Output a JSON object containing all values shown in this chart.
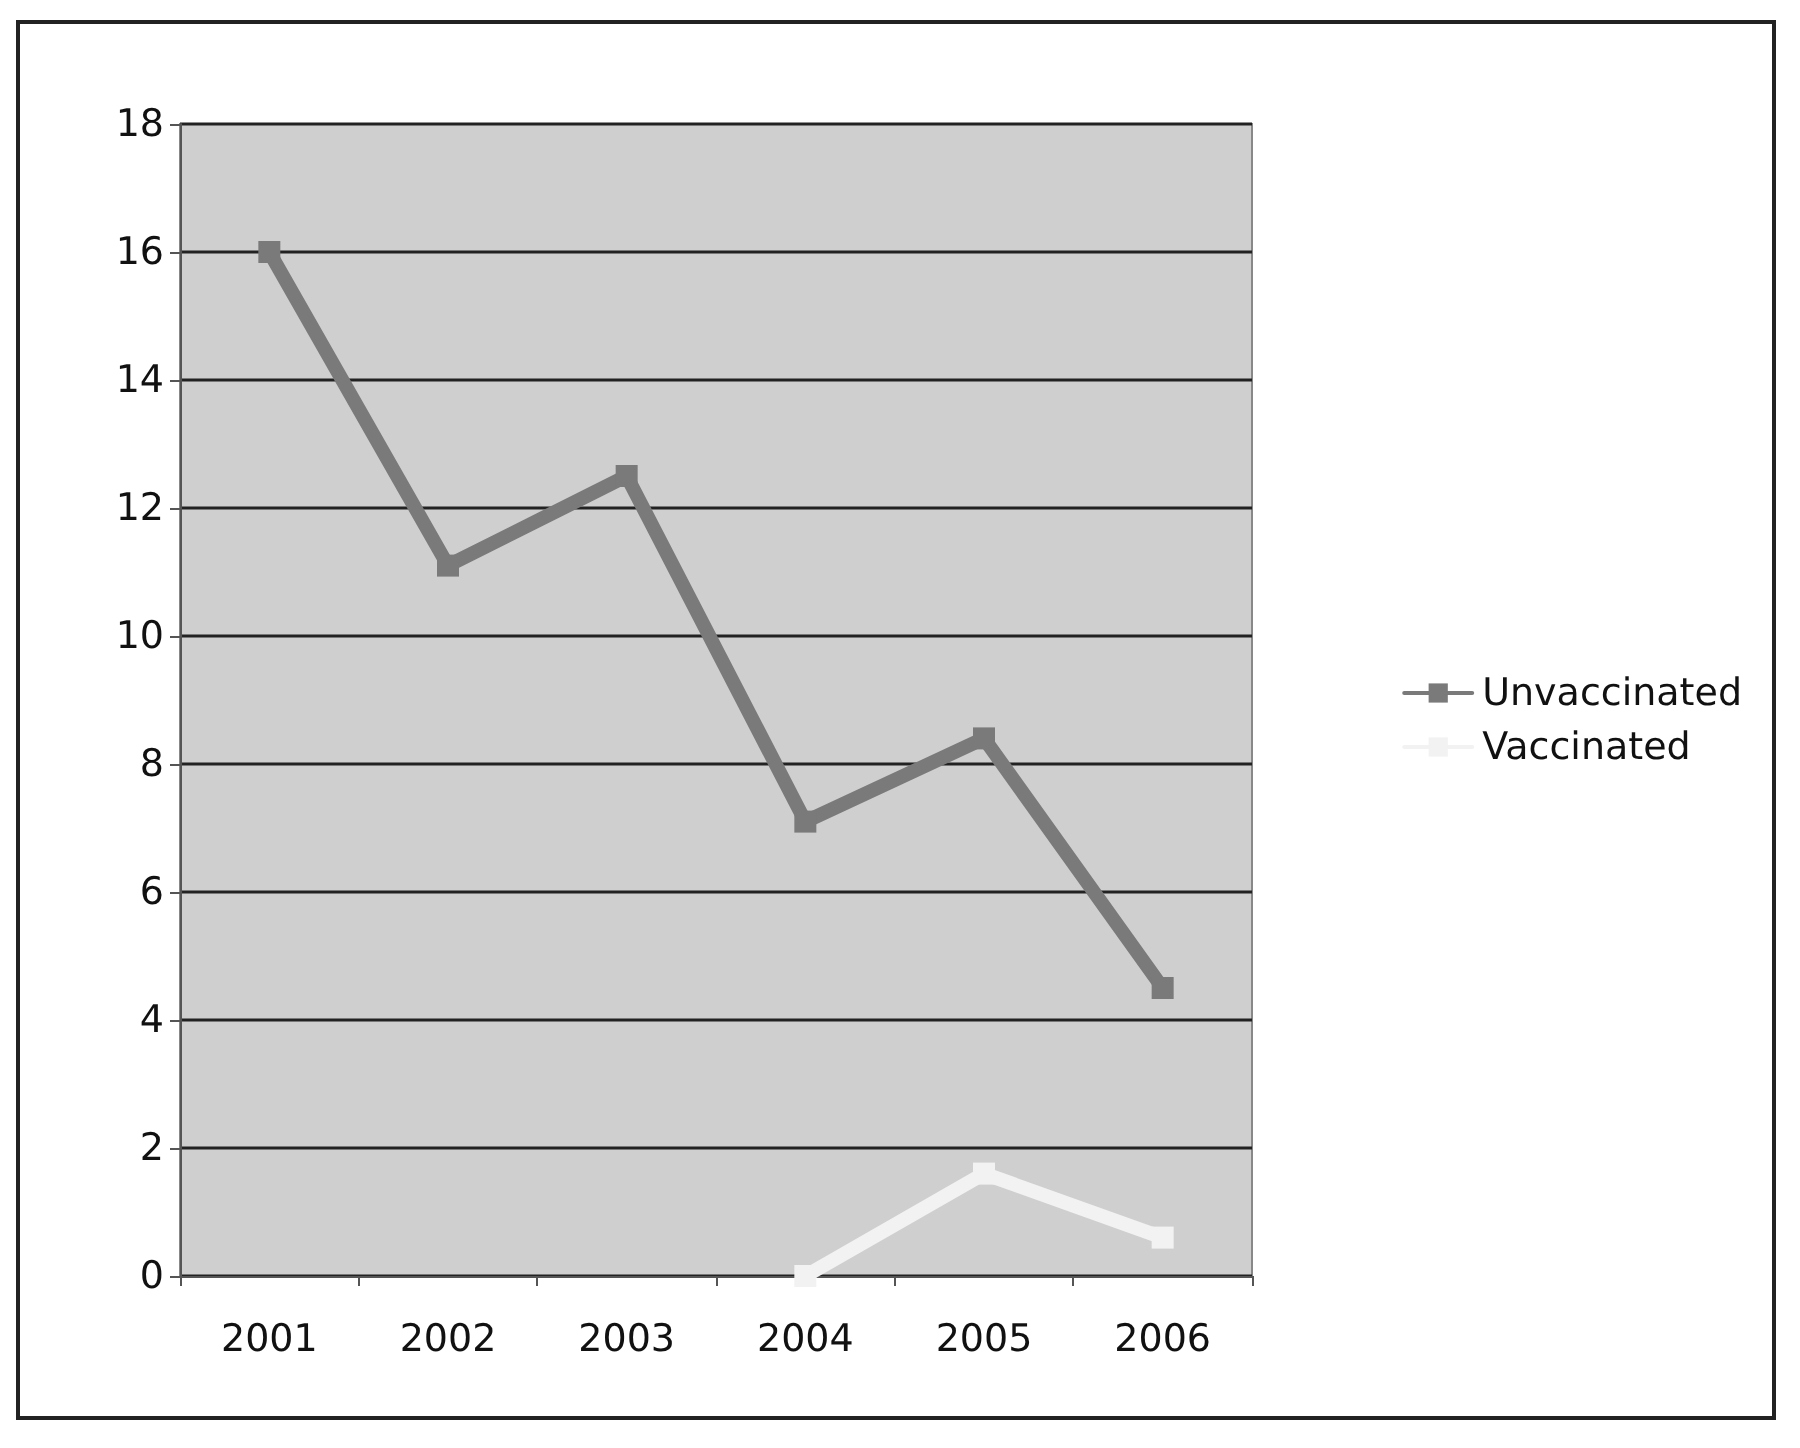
{
  "chart_data": {
    "type": "line",
    "categories": [
      "2001",
      "2002",
      "2003",
      "2004",
      "2005",
      "2006"
    ],
    "series": [
      {
        "name": "Unvaccinated",
        "color": "#7a7a7a",
        "values": [
          16,
          11.1,
          12.5,
          7.1,
          8.4,
          4.5
        ]
      },
      {
        "name": "Vaccinated",
        "color": "#f2f2f2",
        "values": [
          null,
          null,
          null,
          0,
          1.6,
          0.6
        ]
      }
    ],
    "ylim": [
      0,
      18
    ],
    "yticks": [
      0,
      2,
      4,
      6,
      8,
      10,
      12,
      14,
      16,
      18
    ],
    "grid": "y",
    "legend": "right",
    "marker": "square",
    "line_style": "solid"
  }
}
